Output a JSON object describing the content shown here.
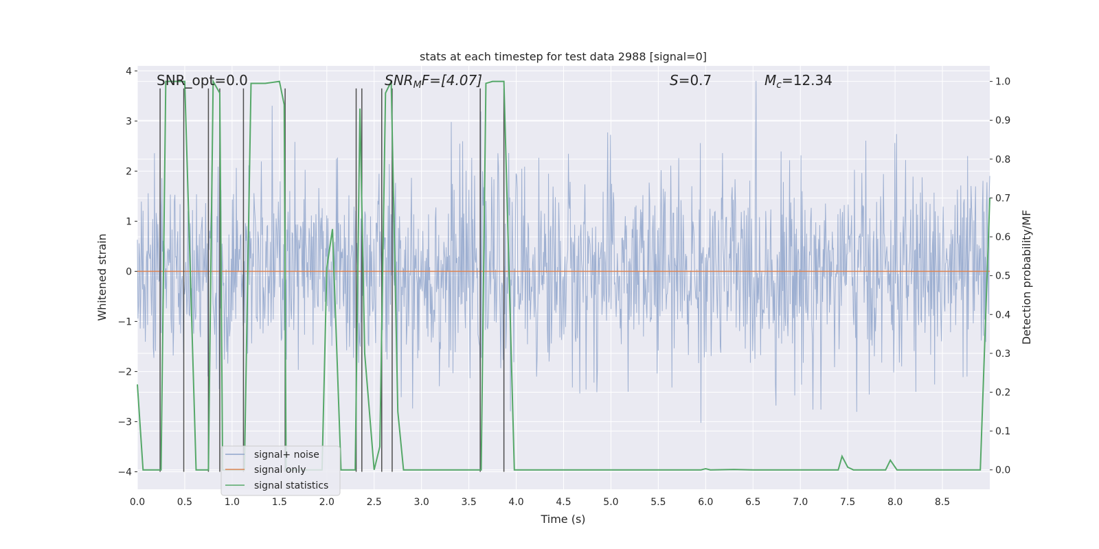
{
  "chart_data": {
    "type": "line",
    "title": "stats at each timestep for test data 2988 [signal=0]",
    "xlabel": "Time (s)",
    "ylabel": "Whitened strain",
    "y2label": "Detection probability/MF",
    "xlim": [
      0,
      9.0
    ],
    "ylim": [
      -4.35,
      4.1
    ],
    "y2lim": [
      -0.05,
      1.04
    ],
    "x_ticks": [
      0.0,
      0.5,
      1.0,
      1.5,
      2.0,
      2.5,
      3.0,
      3.5,
      4.0,
      4.5,
      5.0,
      5.5,
      6.0,
      6.5,
      7.0,
      7.5,
      8.0,
      8.5
    ],
    "x_tick_labels": [
      "0.0",
      "0.5",
      "1.0",
      "1.5",
      "2.0",
      "2.5",
      "3.0",
      "3.5",
      "4.0",
      "4.5",
      "5.0",
      "5.5",
      "6.0",
      "6.5",
      "7.0",
      "7.5",
      "8.0",
      "8.5"
    ],
    "y_ticks": [
      -4,
      -3,
      -2,
      -1,
      0,
      1,
      2,
      3,
      4
    ],
    "y_tick_labels": [
      "−4",
      "−3",
      "−2",
      "−1",
      "0",
      "1",
      "2",
      "3",
      "4"
    ],
    "y2_ticks": [
      0.0,
      0.1,
      0.2,
      0.3,
      0.4,
      0.5,
      0.6,
      0.7,
      0.8,
      0.9,
      1.0
    ],
    "y2_tick_labels": [
      "0.0",
      "0.1",
      "0.2",
      "0.3",
      "0.4",
      "0.5",
      "0.6",
      "0.7",
      "0.8",
      "0.9",
      "1.0"
    ],
    "annotations": {
      "snr_opt": "SNR_opt=0.0",
      "snr_mf_sym": "SNR",
      "snr_mf_sub": "M",
      "snr_mf_rest": "F=[4.07]",
      "s_sym": "S",
      "s_rest": "=0.7",
      "mc_sym": "M",
      "mc_sub": "c",
      "mc_rest": "=12.34"
    },
    "legend": {
      "location": "lower-left",
      "entries": [
        "signal+ noise",
        "signal only",
        "signal statistics"
      ]
    },
    "series": [
      {
        "name": "signal+ noise",
        "color": "#8fa4cb",
        "description_stats": {
          "std": 1.0,
          "clip_min": -4.0,
          "clip_max": 3.8,
          "seed": 2988,
          "n_points": 1500
        }
      },
      {
        "name": "signal only",
        "color": "#dd8452",
        "x": [
          0,
          9.0
        ],
        "values": [
          0,
          0
        ]
      },
      {
        "name": "signal statistics",
        "color": "#55a868",
        "x": [
          0.0,
          0.06,
          0.2,
          0.25,
          0.3,
          0.5,
          0.62,
          0.75,
          0.8,
          0.87,
          0.9,
          1.13,
          1.2,
          1.35,
          1.5,
          1.55,
          1.57,
          1.95,
          2.0,
          2.06,
          2.15,
          2.3,
          2.35,
          2.4,
          2.5,
          2.56,
          2.62,
          2.68,
          2.75,
          2.81,
          3.0,
          3.5,
          3.63,
          3.68,
          3.75,
          3.87,
          3.98,
          4.1,
          4.5,
          5.0,
          5.5,
          5.95,
          6.0,
          6.05,
          6.3,
          6.5,
          7.0,
          7.4,
          7.44,
          7.5,
          7.56,
          7.9,
          7.95,
          8.02,
          8.5,
          8.9,
          9.0
        ],
        "values": [
          0.22,
          0.0,
          0.0,
          0.0,
          1.0,
          1.0,
          0.0,
          0.0,
          1.0,
          0.97,
          0.0,
          0.0,
          0.995,
          0.995,
          1.0,
          0.94,
          0.0,
          0.0,
          0.52,
          0.62,
          0.0,
          0.0,
          0.93,
          0.3,
          0.0,
          0.06,
          0.97,
          1.0,
          0.15,
          0.0,
          0.0,
          0.0,
          0.0,
          0.995,
          1.0,
          1.0,
          0.0,
          0.0,
          0.0,
          0.0,
          0.0,
          0.0,
          0.003,
          0.0,
          0.001,
          0.0,
          0.0,
          0.0,
          0.035,
          0.007,
          0.0,
          0.0,
          0.025,
          0.0,
          0.0,
          0.0,
          0.7
        ]
      },
      {
        "name": "detection markers",
        "color": "#4d4d4d",
        "x": [
          0.24,
          0.49,
          0.75,
          0.87,
          1.12,
          1.56,
          2.31,
          2.37,
          2.58,
          2.69,
          3.62,
          3.87
        ],
        "values": [
          3.65,
          3.65,
          3.65,
          3.65,
          3.65,
          3.65,
          3.65,
          3.65,
          3.65,
          3.65,
          3.65,
          3.65
        ]
      }
    ]
  }
}
